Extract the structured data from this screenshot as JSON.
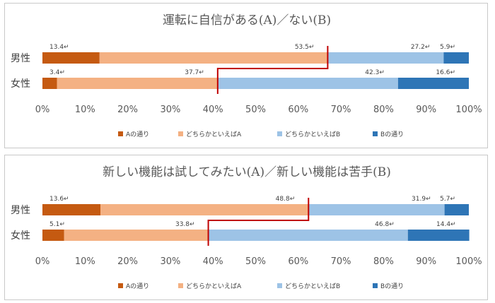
{
  "chart_data": [
    {
      "type": "bar",
      "stacked": true,
      "orientation": "horizontal",
      "title": "運転に自信がある(A)／ない(B)",
      "categories": [
        "男性",
        "女性"
      ],
      "series": [
        {
          "name": "Aの通り",
          "values": [
            13.4,
            3.4
          ],
          "labels": [
            "13.4↵",
            "3.4↵"
          ],
          "color": "#c55a11"
        },
        {
          "name": "どちらかといえばA",
          "values": [
            53.5,
            37.7
          ],
          "labels": [
            "53.5↵",
            "37.7↵"
          ],
          "color": "#f4b183"
        },
        {
          "name": "どちらかといえばB",
          "values": [
            27.2,
            42.3
          ],
          "labels": [
            "27.2↵",
            "42.3↵"
          ],
          "color": "#9dc3e6"
        },
        {
          "name": "Bの通り",
          "values": [
            5.9,
            16.6
          ],
          "labels": [
            "5.9↵",
            "16.6↵"
          ],
          "color": "#2e75b6"
        }
      ],
      "xlim": [
        0,
        100
      ],
      "ticks": [
        "0%",
        "10%",
        "20%",
        "30%",
        "40%",
        "50%",
        "60%",
        "70%",
        "80%",
        "90%",
        "100%"
      ],
      "legend": "bottom",
      "divider_color": "#c00000"
    },
    {
      "type": "bar",
      "stacked": true,
      "orientation": "horizontal",
      "title": "新しい機能は試してみたい(A)／新しい機能は苦手(B)",
      "categories": [
        "男性",
        "女性"
      ],
      "series": [
        {
          "name": "Aの通り",
          "values": [
            13.6,
            5.1
          ],
          "labels": [
            "13.6↵",
            "5.1↵"
          ],
          "color": "#c55a11"
        },
        {
          "name": "どちらかといえばA",
          "values": [
            48.8,
            33.8
          ],
          "labels": [
            "48.8↵",
            "33.8↵"
          ],
          "color": "#f4b183"
        },
        {
          "name": "どちらかといえばB",
          "values": [
            31.9,
            46.8
          ],
          "labels": [
            "31.9↵",
            "46.8↵"
          ],
          "color": "#9dc3e6"
        },
        {
          "name": "Bの通り",
          "values": [
            5.7,
            14.4
          ],
          "labels": [
            "5.7↵",
            "14.4↵"
          ],
          "color": "#2e75b6"
        }
      ],
      "xlim": [
        0,
        100
      ],
      "ticks": [
        "0%",
        "10%",
        "20%",
        "30%",
        "40%",
        "50%",
        "60%",
        "70%",
        "80%",
        "90%",
        "100%"
      ],
      "legend": "bottom",
      "divider_color": "#c00000"
    }
  ]
}
